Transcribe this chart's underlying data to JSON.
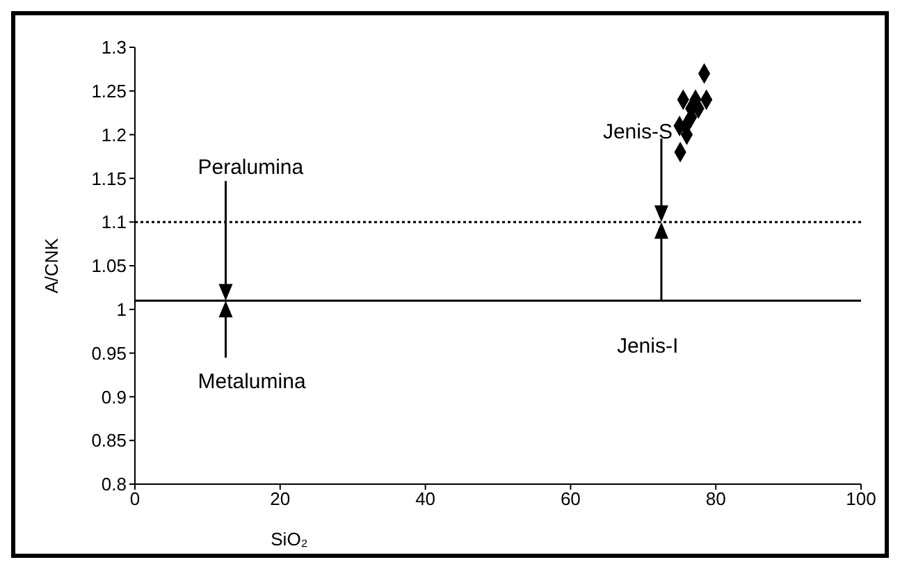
{
  "chart_data": {
    "type": "scatter",
    "xlabel": "SiO₂",
    "ylabel": "A/CNK",
    "x": [
      78.4,
      75.5,
      77.2,
      78.7,
      76.6,
      77.6,
      76.6,
      75.0,
      75.9,
      75.1,
      76.0
    ],
    "series": [
      {
        "color": "#000000",
        "values": [
          1.27,
          1.24,
          1.24,
          1.24,
          1.23,
          1.23,
          1.22,
          1.21,
          1.21,
          1.18,
          1.2
        ]
      }
    ],
    "xlim": [
      0,
      100
    ],
    "xticks": [
      0,
      20,
      40,
      60,
      80,
      100
    ],
    "ylim": [
      0.8,
      1.3
    ],
    "yticks": [
      0.8,
      0.85,
      0.9,
      0.95,
      1,
      1.05,
      1.1,
      1.15,
      1.2,
      1.25,
      1.3
    ],
    "ref_lines": [
      {
        "axis": "y",
        "value": 1.1,
        "line_style": "dotted",
        "color": "#000000"
      },
      {
        "axis": "y",
        "value": 1.01,
        "line_style": "solid",
        "color": "#000000"
      }
    ],
    "annotations": [
      "Peralumina",
      "Metalumina",
      "Jenis-S",
      "Jenis-I"
    ],
    "marker": "diamond",
    "grid": false,
    "legend": false
  }
}
